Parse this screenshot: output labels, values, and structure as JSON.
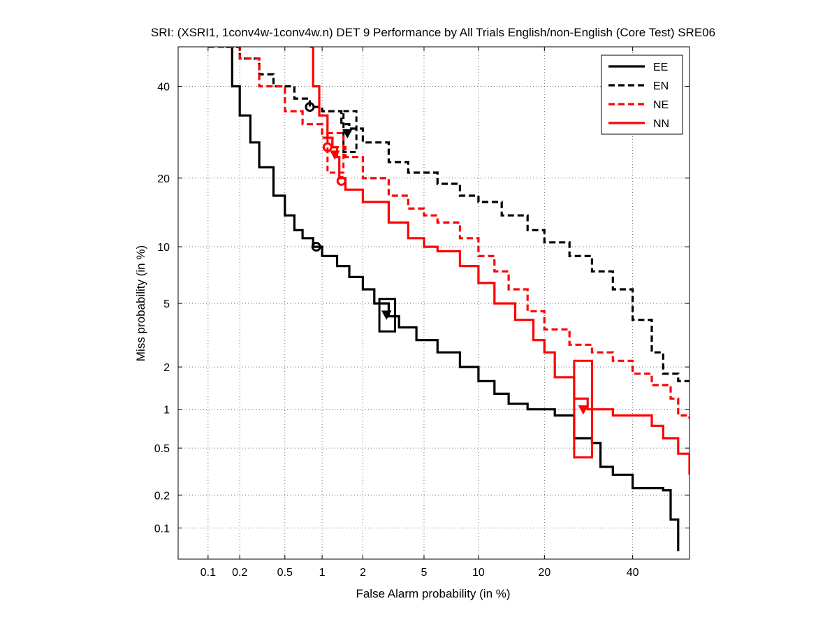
{
  "chart_data": {
    "type": "line",
    "title": "SRI: (XSRI1, 1conv4w-1conv4w.n) DET 9 Performance by All Trials English/non-English (Core Test) SRE06",
    "xlabel": "False Alarm probability (in %)",
    "ylabel": "Miss probability (in %)",
    "xscale": "probit",
    "yscale": "probit",
    "xlim": [
      0.05,
      55
    ],
    "ylim": [
      0.05,
      50
    ],
    "xticks": [
      0.1,
      0.2,
      0.5,
      1,
      2,
      5,
      10,
      20,
      40
    ],
    "xtick_labels": [
      "0.1",
      "0.2",
      "0.5",
      "1",
      "2",
      "5",
      "10",
      "20",
      "40"
    ],
    "yticks": [
      0.1,
      0.2,
      0.5,
      1,
      2,
      5,
      10,
      20,
      40
    ],
    "ytick_labels": [
      "0.1",
      "0.2",
      "0.5",
      "1",
      "2",
      "5",
      "10",
      "20",
      "40"
    ],
    "grid": true,
    "legend_position": "top-right",
    "series": [
      {
        "name": "EE",
        "color": "#000000",
        "dash": "solid",
        "points": [
          [
            0.15,
            50
          ],
          [
            0.17,
            40
          ],
          [
            0.2,
            33
          ],
          [
            0.25,
            27
          ],
          [
            0.3,
            22
          ],
          [
            0.4,
            17
          ],
          [
            0.5,
            14
          ],
          [
            0.6,
            12
          ],
          [
            0.7,
            11
          ],
          [
            0.85,
            10
          ],
          [
            1.0,
            9
          ],
          [
            1.3,
            8
          ],
          [
            1.6,
            7
          ],
          [
            2.0,
            6
          ],
          [
            2.4,
            5
          ],
          [
            3.0,
            4.2
          ],
          [
            3.5,
            3.6
          ],
          [
            4.5,
            3.0
          ],
          [
            6,
            2.5
          ],
          [
            8,
            2.0
          ],
          [
            10,
            1.6
          ],
          [
            12,
            1.3
          ],
          [
            14,
            1.1
          ],
          [
            17,
            1.0
          ],
          [
            22,
            0.9
          ],
          [
            26,
            0.6
          ],
          [
            30,
            0.55
          ],
          [
            32,
            0.35
          ],
          [
            35,
            0.3
          ],
          [
            40,
            0.23
          ],
          [
            48,
            0.22
          ],
          [
            50,
            0.12
          ],
          [
            52,
            0.06
          ]
        ]
      },
      {
        "name": "EN",
        "color": "#000000",
        "dash": "dashed",
        "points": [
          [
            0.15,
            50
          ],
          [
            0.2,
            47
          ],
          [
            0.3,
            43
          ],
          [
            0.4,
            40
          ],
          [
            0.6,
            37
          ],
          [
            0.8,
            35
          ],
          [
            1.0,
            34
          ],
          [
            1.4,
            31
          ],
          [
            1.6,
            30
          ],
          [
            2.0,
            27
          ],
          [
            3.0,
            23
          ],
          [
            4.0,
            21
          ],
          [
            6.0,
            19
          ],
          [
            8.0,
            17
          ],
          [
            10,
            16
          ],
          [
            13,
            14
          ],
          [
            17,
            12
          ],
          [
            20,
            10.5
          ],
          [
            25,
            9
          ],
          [
            30,
            7.5
          ],
          [
            35,
            6
          ],
          [
            40,
            4
          ],
          [
            45,
            2.5
          ],
          [
            48,
            1.8
          ],
          [
            52,
            1.6
          ],
          [
            55,
            1.6
          ]
        ]
      },
      {
        "name": "NE",
        "color": "#ff0000",
        "dash": "dashed",
        "points": [
          [
            0.1,
            50
          ],
          [
            0.2,
            47
          ],
          [
            0.3,
            40
          ],
          [
            0.5,
            34
          ],
          [
            0.7,
            31
          ],
          [
            1.0,
            28
          ],
          [
            1.2,
            26
          ],
          [
            1.5,
            24
          ],
          [
            2.0,
            20
          ],
          [
            3.0,
            17
          ],
          [
            4.0,
            15
          ],
          [
            5.0,
            14
          ],
          [
            6.0,
            13
          ],
          [
            8.0,
            11
          ],
          [
            10,
            9
          ],
          [
            12,
            7.5
          ],
          [
            14,
            6
          ],
          [
            17,
            4.5
          ],
          [
            20,
            3.5
          ],
          [
            25,
            2.8
          ],
          [
            30,
            2.5
          ],
          [
            35,
            2.2
          ],
          [
            40,
            1.8
          ],
          [
            45,
            1.5
          ],
          [
            50,
            1.2
          ],
          [
            52,
            0.9
          ],
          [
            55,
            0.85
          ]
        ]
      },
      {
        "name": "NN",
        "color": "#ff0000",
        "dash": "solid",
        "points": [
          [
            0.8,
            50
          ],
          [
            0.85,
            40
          ],
          [
            0.95,
            33
          ],
          [
            1.1,
            28
          ],
          [
            1.2,
            26
          ],
          [
            1.3,
            24
          ],
          [
            1.35,
            20
          ],
          [
            1.5,
            18
          ],
          [
            2.0,
            16
          ],
          [
            3.0,
            13
          ],
          [
            4.0,
            11
          ],
          [
            5.0,
            10
          ],
          [
            6.0,
            9.5
          ],
          [
            8.0,
            8
          ],
          [
            10,
            6.5
          ],
          [
            12,
            5
          ],
          [
            15,
            4
          ],
          [
            18,
            3
          ],
          [
            20,
            2.5
          ],
          [
            22,
            1.7
          ],
          [
            26,
            1.2
          ],
          [
            29,
            1.0
          ],
          [
            35,
            0.9
          ],
          [
            45,
            0.75
          ],
          [
            48,
            0.6
          ],
          [
            52,
            0.45
          ],
          [
            55,
            0.3
          ]
        ]
      }
    ],
    "markers": [
      {
        "series": "EE",
        "type": "circle",
        "x": 0.9,
        "y": 10
      },
      {
        "series": "EN",
        "type": "circle",
        "x": 0.8,
        "y": 35
      },
      {
        "series": "NE",
        "type": "circle",
        "x": 1.4,
        "y": 19.5
      },
      {
        "series": "NN",
        "type": "circle",
        "x": 1.1,
        "y": 26
      },
      {
        "series": "EE",
        "type": "triangle",
        "x": 2.9,
        "y": 4.3
      },
      {
        "series": "EN",
        "type": "triangle",
        "x": 1.55,
        "y": 29
      },
      {
        "series": "NE",
        "type": "triangle",
        "x": 1.25,
        "y": 24.5
      },
      {
        "series": "NN",
        "type": "triangle",
        "x": 28,
        "y": 1.0
      }
    ],
    "confidence_boxes": [
      {
        "series": "EE",
        "x_range": [
          2.6,
          3.3
        ],
        "y_range": [
          3.4,
          5.3
        ]
      },
      {
        "series": "EN",
        "x_range": [
          1.45,
          1.8
        ],
        "y_range": [
          25,
          34
        ]
      },
      {
        "series": "NE",
        "x_range": [
          1.1,
          1.45
        ],
        "y_range": [
          21,
          29
        ]
      },
      {
        "series": "NN",
        "x_range": [
          26,
          30
        ],
        "y_range": [
          0.42,
          2.2
        ]
      }
    ]
  }
}
